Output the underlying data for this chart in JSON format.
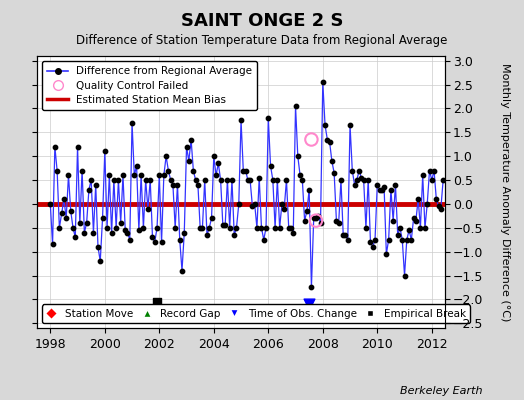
{
  "title": "SAINT ONGE 2 S",
  "subtitle": "Difference of Station Temperature Data from Regional Average",
  "ylabel": "Monthly Temperature Anomaly Difference (°C)",
  "xlabel_years": [
    1998,
    2000,
    2002,
    2004,
    2006,
    2008,
    2010,
    2012
  ],
  "xlim": [
    1997.5,
    2012.5
  ],
  "ylim": [
    -2.6,
    3.1
  ],
  "yticks": [
    -2.5,
    -2,
    -1.5,
    -1,
    -0.5,
    0,
    0.5,
    1,
    1.5,
    2,
    2.5,
    3
  ],
  "bias_value": 0.0,
  "fig_bg_color": "#d8d8d8",
  "plot_bg_color": "#ffffff",
  "line_color": "#3333ff",
  "bias_color": "#cc0000",
  "watermark": "Berkeley Earth",
  "time_series": [
    [
      1998.0,
      0.0
    ],
    [
      1998.083,
      -0.85
    ],
    [
      1998.167,
      1.2
    ],
    [
      1998.25,
      0.7
    ],
    [
      1998.333,
      -0.5
    ],
    [
      1998.417,
      -0.2
    ],
    [
      1998.5,
      0.1
    ],
    [
      1998.583,
      -0.3
    ],
    [
      1998.667,
      0.6
    ],
    [
      1998.75,
      -0.15
    ],
    [
      1998.833,
      -0.5
    ],
    [
      1998.917,
      -0.7
    ],
    [
      1999.0,
      1.2
    ],
    [
      1999.083,
      -0.4
    ],
    [
      1999.167,
      0.7
    ],
    [
      1999.25,
      -0.6
    ],
    [
      1999.333,
      -0.4
    ],
    [
      1999.417,
      0.3
    ],
    [
      1999.5,
      0.5
    ],
    [
      1999.583,
      -0.6
    ],
    [
      1999.667,
      0.4
    ],
    [
      1999.75,
      -0.9
    ],
    [
      1999.833,
      -1.2
    ],
    [
      1999.917,
      -0.3
    ],
    [
      2000.0,
      1.1
    ],
    [
      2000.083,
      -0.5
    ],
    [
      2000.167,
      0.6
    ],
    [
      2000.25,
      -0.6
    ],
    [
      2000.333,
      0.5
    ],
    [
      2000.417,
      -0.5
    ],
    [
      2000.5,
      0.5
    ],
    [
      2000.583,
      -0.4
    ],
    [
      2000.667,
      0.6
    ],
    [
      2000.75,
      -0.55
    ],
    [
      2000.833,
      -0.6
    ],
    [
      2000.917,
      -0.75
    ],
    [
      2001.0,
      1.7
    ],
    [
      2001.083,
      0.6
    ],
    [
      2001.167,
      0.8
    ],
    [
      2001.25,
      -0.55
    ],
    [
      2001.333,
      0.6
    ],
    [
      2001.417,
      -0.5
    ],
    [
      2001.5,
      0.5
    ],
    [
      2001.583,
      -0.1
    ],
    [
      2001.667,
      0.5
    ],
    [
      2001.75,
      -0.7
    ],
    [
      2001.833,
      -0.8
    ],
    [
      2001.917,
      -0.5
    ],
    [
      2002.0,
      0.6
    ],
    [
      2002.083,
      -0.8
    ],
    [
      2002.167,
      0.6
    ],
    [
      2002.25,
      1.0
    ],
    [
      2002.333,
      0.7
    ],
    [
      2002.417,
      0.5
    ],
    [
      2002.5,
      0.4
    ],
    [
      2002.583,
      -0.5
    ],
    [
      2002.667,
      0.4
    ],
    [
      2002.75,
      -0.75
    ],
    [
      2002.833,
      -1.4
    ],
    [
      2002.917,
      -0.6
    ],
    [
      2003.0,
      1.2
    ],
    [
      2003.083,
      0.9
    ],
    [
      2003.167,
      1.35
    ],
    [
      2003.25,
      0.7
    ],
    [
      2003.333,
      0.5
    ],
    [
      2003.417,
      0.4
    ],
    [
      2003.5,
      -0.5
    ],
    [
      2003.583,
      -0.5
    ],
    [
      2003.667,
      0.5
    ],
    [
      2003.75,
      -0.65
    ],
    [
      2003.833,
      -0.5
    ],
    [
      2003.917,
      -0.3
    ],
    [
      2004.0,
      1.0
    ],
    [
      2004.083,
      0.6
    ],
    [
      2004.167,
      0.85
    ],
    [
      2004.25,
      0.5
    ],
    [
      2004.333,
      -0.45
    ],
    [
      2004.417,
      -0.45
    ],
    [
      2004.5,
      0.5
    ],
    [
      2004.583,
      -0.5
    ],
    [
      2004.667,
      0.5
    ],
    [
      2004.75,
      -0.65
    ],
    [
      2004.833,
      -0.5
    ],
    [
      2004.917,
      0.0
    ],
    [
      2005.0,
      1.75
    ],
    [
      2005.083,
      0.7
    ],
    [
      2005.167,
      0.7
    ],
    [
      2005.25,
      0.5
    ],
    [
      2005.333,
      0.5
    ],
    [
      2005.417,
      -0.05
    ],
    [
      2005.5,
      0.0
    ],
    [
      2005.583,
      -0.5
    ],
    [
      2005.667,
      0.55
    ],
    [
      2005.75,
      -0.5
    ],
    [
      2005.833,
      -0.75
    ],
    [
      2005.917,
      -0.5
    ],
    [
      2006.0,
      1.8
    ],
    [
      2006.083,
      0.8
    ],
    [
      2006.167,
      0.5
    ],
    [
      2006.25,
      -0.5
    ],
    [
      2006.333,
      0.5
    ],
    [
      2006.417,
      -0.5
    ],
    [
      2006.5,
      0.0
    ],
    [
      2006.583,
      -0.1
    ],
    [
      2006.667,
      0.5
    ],
    [
      2006.75,
      -0.5
    ],
    [
      2006.833,
      -0.5
    ],
    [
      2006.917,
      -0.6
    ],
    [
      2007.0,
      2.05
    ],
    [
      2007.083,
      1.0
    ],
    [
      2007.167,
      0.6
    ],
    [
      2007.25,
      0.5
    ],
    [
      2007.333,
      -0.35
    ],
    [
      2007.417,
      -0.15
    ],
    [
      2007.5,
      0.3
    ],
    [
      2007.583,
      -1.75
    ],
    [
      2007.667,
      -0.3
    ],
    [
      2007.75,
      -0.3
    ],
    [
      2007.833,
      -0.25
    ],
    [
      2007.917,
      -0.4
    ],
    [
      2008.0,
      2.55
    ],
    [
      2008.083,
      1.65
    ],
    [
      2008.167,
      1.35
    ],
    [
      2008.25,
      1.3
    ],
    [
      2008.333,
      0.9
    ],
    [
      2008.417,
      0.65
    ],
    [
      2008.5,
      -0.35
    ],
    [
      2008.583,
      -0.4
    ],
    [
      2008.667,
      0.5
    ],
    [
      2008.75,
      -0.65
    ],
    [
      2008.833,
      -0.65
    ],
    [
      2008.917,
      -0.75
    ],
    [
      2009.0,
      1.65
    ],
    [
      2009.083,
      0.7
    ],
    [
      2009.167,
      0.4
    ],
    [
      2009.25,
      0.5
    ],
    [
      2009.333,
      0.7
    ],
    [
      2009.417,
      0.55
    ],
    [
      2009.5,
      0.5
    ],
    [
      2009.583,
      -0.5
    ],
    [
      2009.667,
      0.5
    ],
    [
      2009.75,
      -0.8
    ],
    [
      2009.833,
      -0.9
    ],
    [
      2009.917,
      -0.75
    ],
    [
      2010.0,
      0.4
    ],
    [
      2010.083,
      0.3
    ],
    [
      2010.167,
      0.3
    ],
    [
      2010.25,
      0.35
    ],
    [
      2010.333,
      -1.05
    ],
    [
      2010.417,
      -0.75
    ],
    [
      2010.5,
      0.3
    ],
    [
      2010.583,
      -0.35
    ],
    [
      2010.667,
      0.4
    ],
    [
      2010.75,
      -0.65
    ],
    [
      2010.833,
      -0.5
    ],
    [
      2010.917,
      -0.75
    ],
    [
      2011.0,
      -1.5
    ],
    [
      2011.083,
      -0.75
    ],
    [
      2011.167,
      -0.55
    ],
    [
      2011.25,
      -0.75
    ],
    [
      2011.333,
      -0.3
    ],
    [
      2011.417,
      -0.35
    ],
    [
      2011.5,
      0.1
    ],
    [
      2011.583,
      -0.5
    ],
    [
      2011.667,
      0.6
    ],
    [
      2011.75,
      -0.5
    ],
    [
      2011.833,
      0.0
    ],
    [
      2011.917,
      0.7
    ],
    [
      2012.0,
      0.5
    ],
    [
      2012.083,
      0.7
    ],
    [
      2012.167,
      0.1
    ],
    [
      2012.25,
      -0.05
    ],
    [
      2012.333,
      -0.1
    ],
    [
      2012.417,
      0.5
    ]
  ],
  "qc_failed_points": [
    [
      2007.583,
      1.35
    ],
    [
      2007.75,
      -0.35
    ]
  ],
  "special_markers": {
    "station_move": [],
    "record_gap": [],
    "time_obs_change": [
      [
        2007.5,
        -2.1
      ]
    ],
    "empirical_break": [
      [
        2001.917,
        -2.05
      ]
    ]
  }
}
